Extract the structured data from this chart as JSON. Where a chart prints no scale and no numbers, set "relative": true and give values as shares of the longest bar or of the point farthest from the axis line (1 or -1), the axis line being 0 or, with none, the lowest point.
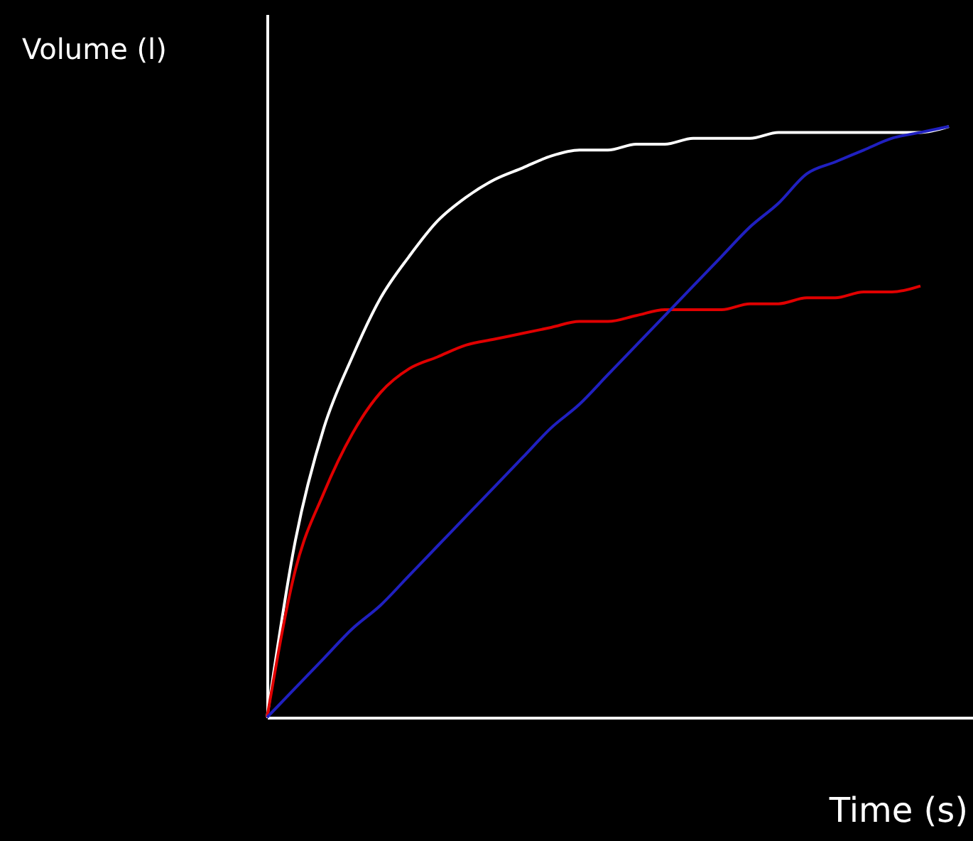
{
  "chart_data": {
    "type": "line",
    "relative": true,
    "xlabel": "Time (s)",
    "ylabel": "Volume (l)",
    "grid": false,
    "marker": "none",
    "line_style": "solid",
    "categories": [
      null,
      null,
      null,
      null,
      null,
      null,
      null,
      null,
      null,
      null,
      null,
      null,
      null,
      null,
      null,
      null,
      null,
      null,
      null,
      null,
      null,
      null,
      null,
      null,
      null
    ],
    "series": [
      {
        "color": "#ffffff",
        "values": [
          0,
          0.3,
          0.49,
          0.61,
          0.71,
          0.78,
          0.84,
          0.88,
          0.91,
          0.93,
          0.95,
          0.96,
          0.96,
          0.97,
          0.97,
          0.98,
          0.98,
          0.98,
          0.99,
          0.99,
          0.99,
          0.99,
          0.99,
          0.99,
          1.0
        ]
      },
      {
        "color": "#e00000",
        "values": [
          0,
          0.25,
          0.38,
          0.48,
          0.55,
          0.59,
          0.61,
          0.63,
          0.64,
          0.65,
          0.66,
          0.67,
          0.67,
          0.68,
          0.69,
          0.69,
          0.69,
          0.7,
          0.7,
          0.71,
          0.71,
          0.72,
          0.72,
          0.73,
          null
        ]
      },
      {
        "color": "#2020c0",
        "values": [
          0,
          0.05,
          0.1,
          0.15,
          0.19,
          0.24,
          0.29,
          0.34,
          0.39,
          0.44,
          0.49,
          0.53,
          0.58,
          0.63,
          0.68,
          0.73,
          0.78,
          0.83,
          0.87,
          0.92,
          0.94,
          0.96,
          0.98,
          0.99,
          1.0
        ]
      }
    ]
  }
}
